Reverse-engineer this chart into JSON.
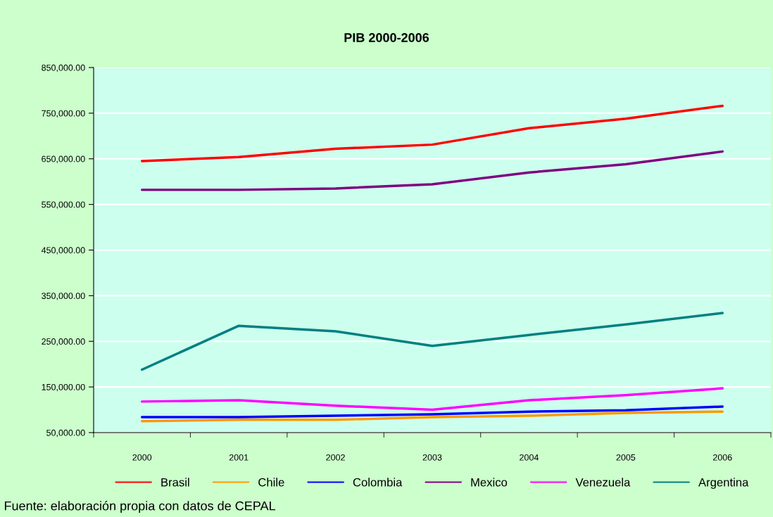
{
  "chart_data": {
    "type": "line",
    "title": "PIB 2000-2006",
    "categories": [
      "2000",
      "2001",
      "2002",
      "2003",
      "2004",
      "2005",
      "2006"
    ],
    "series": [
      {
        "name": "Brasil",
        "color": "#ff0000",
        "values": [
          645000,
          654000,
          672000,
          681000,
          717000,
          738000,
          766000
        ]
      },
      {
        "name": "Chile",
        "color": "#ff9900",
        "values": [
          75000,
          78000,
          78000,
          84000,
          87000,
          93000,
          96000
        ]
      },
      {
        "name": "Colombia",
        "color": "#0000ff",
        "values": [
          84000,
          84000,
          87000,
          90000,
          96000,
          99000,
          107000
        ]
      },
      {
        "name": "Mexico",
        "color": "#800080",
        "values": [
          582000,
          582000,
          585000,
          594000,
          620000,
          638000,
          666000
        ]
      },
      {
        "name": "Venezuela",
        "color": "#ff00ff",
        "values": [
          118000,
          121000,
          109000,
          100000,
          121000,
          132000,
          147000
        ]
      },
      {
        "name": "Argentina",
        "color": "#008080",
        "values": [
          188000,
          284000,
          272000,
          240000,
          264000,
          287000,
          312000
        ]
      }
    ],
    "ylim": [
      50000,
      850000
    ],
    "yticks": [
      {
        "value": 50000,
        "label": "50,000.00"
      },
      {
        "value": 150000,
        "label": "150,000.00"
      },
      {
        "value": 250000,
        "label": "250,000.00"
      },
      {
        "value": 350000,
        "label": "350,000.00"
      },
      {
        "value": 450000,
        "label": "450,000.00"
      },
      {
        "value": 550000,
        "label": "550,000.00"
      },
      {
        "value": 650000,
        "label": "650,000.00"
      },
      {
        "value": 750000,
        "label": "750,000.00"
      },
      {
        "value": 850000,
        "label": "850,000.00"
      }
    ],
    "grid": "y",
    "legend": "bottom",
    "marker": "none",
    "line_style": "solid",
    "annotations": [
      "Fuente: elaboración propia con datos de CEPAL"
    ]
  }
}
